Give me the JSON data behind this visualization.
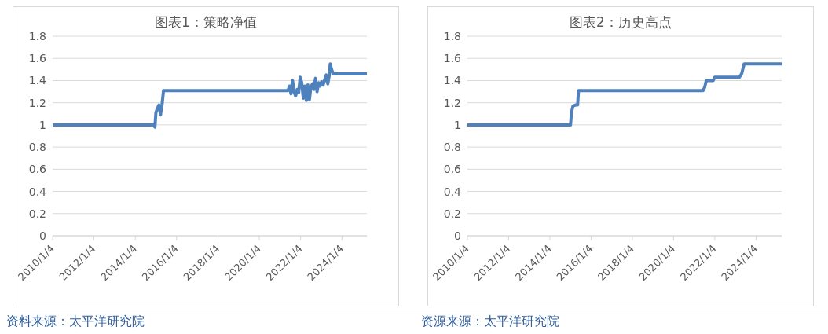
{
  "chart_data": [
    {
      "type": "line",
      "title": "图表1：策略净值",
      "color": "#4f81bd",
      "marker": "none",
      "line_style": "solid",
      "grid": "y",
      "legend": false,
      "x": [
        "2010-01-04",
        "2014-11-25",
        "2014-12-17",
        "2015-01-03",
        "2015-01-30",
        "2015-02-26",
        "2015-03-25",
        "2015-04-21",
        "2015-05-18",
        "2015-06-15",
        "2021-05-26",
        "2021-06-21",
        "2021-07-18",
        "2021-08-14",
        "2021-09-10",
        "2021-10-07",
        "2021-11-03",
        "2021-11-30",
        "2021-12-27",
        "2022-01-24",
        "2022-02-20",
        "2022-03-19",
        "2022-04-15",
        "2022-05-12",
        "2022-06-08",
        "2022-07-05",
        "2022-08-01",
        "2022-08-28",
        "2022-09-24",
        "2022-10-21",
        "2022-11-17",
        "2022-12-14",
        "2023-01-10",
        "2023-02-07",
        "2023-03-06",
        "2023-04-02",
        "2023-04-29",
        "2023-05-26",
        "2023-06-12",
        "2023-07-04",
        "2023-08-05",
        "2025-03-20"
      ],
      "values": [
        1.0,
        1.0,
        0.98,
        1.11,
        1.15,
        1.18,
        1.09,
        1.18,
        1.31,
        1.31,
        1.31,
        1.35,
        1.28,
        1.4,
        1.3,
        1.26,
        1.32,
        1.29,
        1.43,
        1.38,
        1.24,
        1.35,
        1.22,
        1.36,
        1.23,
        1.34,
        1.37,
        1.32,
        1.42,
        1.3,
        1.38,
        1.35,
        1.39,
        1.36,
        1.41,
        1.45,
        1.37,
        1.45,
        1.55,
        1.5,
        1.46,
        1.46
      ],
      "xlim": [
        "2010-01-04",
        "2025-03-20"
      ],
      "xticks": [
        {
          "value": "2010-01-04",
          "label": "2010/1/4"
        },
        {
          "value": "2012-01-04",
          "label": "2012/1/4"
        },
        {
          "value": "2014-01-04",
          "label": "2014/1/4"
        },
        {
          "value": "2016-01-04",
          "label": "2016/1/4"
        },
        {
          "value": "2018-01-04",
          "label": "2018/1/4"
        },
        {
          "value": "2020-01-04",
          "label": "2020/1/4"
        },
        {
          "value": "2022-01-04",
          "label": "2022/1/4"
        },
        {
          "value": "2024-01-04",
          "label": "2024/1/4"
        }
      ],
      "ylim": [
        0,
        1.8
      ],
      "yticks": [
        0,
        0.2,
        0.4,
        0.6,
        0.8,
        1,
        1.2,
        1.4,
        1.6,
        1.8
      ],
      "annotations": [
        "资料来源：太平洋研究院"
      ]
    },
    {
      "type": "line",
      "title": "图表2：历史高点",
      "color": "#4f81bd",
      "marker": "none",
      "line_style": "solid",
      "grid": "y",
      "legend": false,
      "x": [
        "2010-01-04",
        "2015-01-05",
        "2015-01-21",
        "2015-02-17",
        "2015-04-13",
        "2015-05-10",
        "2015-05-27",
        "2021-06-12",
        "2021-07-09",
        "2021-08-06",
        "2021-12-07",
        "2022-01-04",
        "2023-03-16",
        "2023-04-24",
        "2023-06-08",
        "2025-04-03"
      ],
      "values": [
        1.0,
        1.0,
        1.11,
        1.17,
        1.18,
        1.18,
        1.31,
        1.31,
        1.34,
        1.4,
        1.4,
        1.43,
        1.43,
        1.46,
        1.55,
        1.55
      ],
      "xlim": [
        "2010-01-04",
        "2025-04-03"
      ],
      "xticks": [
        {
          "value": "2010-01-04",
          "label": "2010/1/4"
        },
        {
          "value": "2012-01-04",
          "label": "2012/1/4"
        },
        {
          "value": "2014-01-04",
          "label": "2014/1/4"
        },
        {
          "value": "2016-01-04",
          "label": "2016/1/4"
        },
        {
          "value": "2018-01-04",
          "label": "2018/1/4"
        },
        {
          "value": "2020-01-04",
          "label": "2020/1/4"
        },
        {
          "value": "2022-01-04",
          "label": "2022/1/4"
        },
        {
          "value": "2024-01-04",
          "label": "2024/1/4"
        }
      ],
      "ylim": [
        0,
        1.8
      ],
      "yticks": [
        0,
        0.2,
        0.4,
        0.6,
        0.8,
        1,
        1.2,
        1.4,
        1.6,
        1.8
      ],
      "annotations": [
        "资源来源：太平洋研究院"
      ]
    }
  ]
}
